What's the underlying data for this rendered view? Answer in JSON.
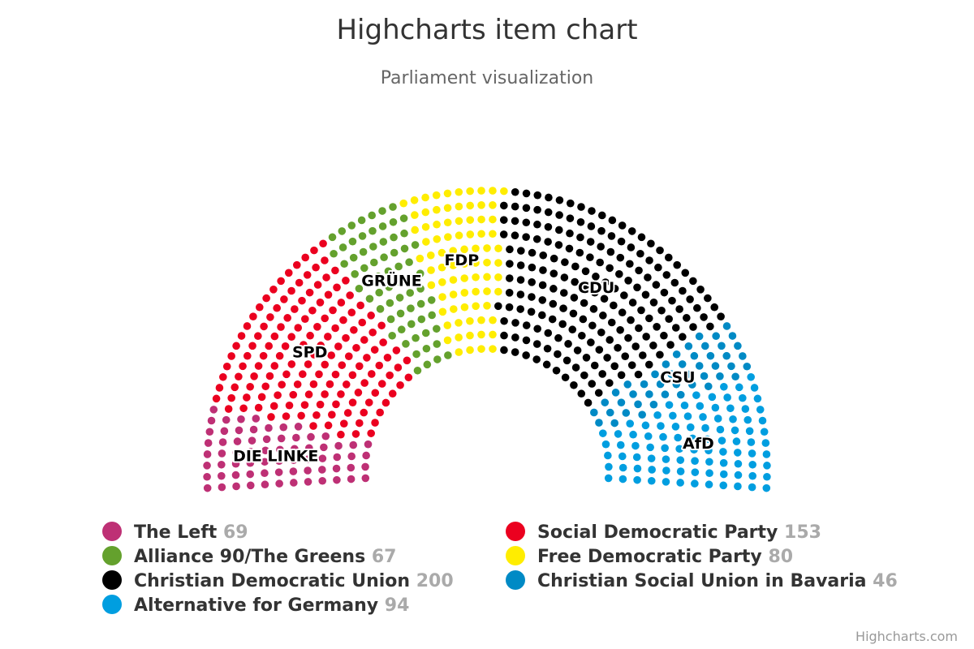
{
  "chart_data": {
    "type": "item",
    "title": "Highcharts item chart",
    "subtitle": "Parliament visualization",
    "layout": "semicircle",
    "series": [
      {
        "label": "DIE LINKE",
        "name": "The Left",
        "value": 69,
        "color": "#BE3075"
      },
      {
        "label": "SPD",
        "name": "Social Democratic Party",
        "value": 153,
        "color": "#EB001F"
      },
      {
        "label": "GRÜNE",
        "name": "Alliance 90/The Greens",
        "value": 67,
        "color": "#64A12D"
      },
      {
        "label": "FDP",
        "name": "Free Democratic Party",
        "value": 80,
        "color": "#FFED00"
      },
      {
        "label": "CDU",
        "name": "Christian Democratic Union",
        "value": 200,
        "color": "#000000"
      },
      {
        "label": "CSU",
        "name": "Christian Social Union in Bavaria",
        "value": 46,
        "color": "#008AC5"
      },
      {
        "label": "AfD",
        "name": "Alternative for Germany",
        "value": 94,
        "color": "#009EE0"
      }
    ],
    "legend_order": [
      0,
      1,
      2,
      3,
      4,
      5,
      6
    ],
    "legend_position": "bottom"
  },
  "credits": "Highcharts.com"
}
